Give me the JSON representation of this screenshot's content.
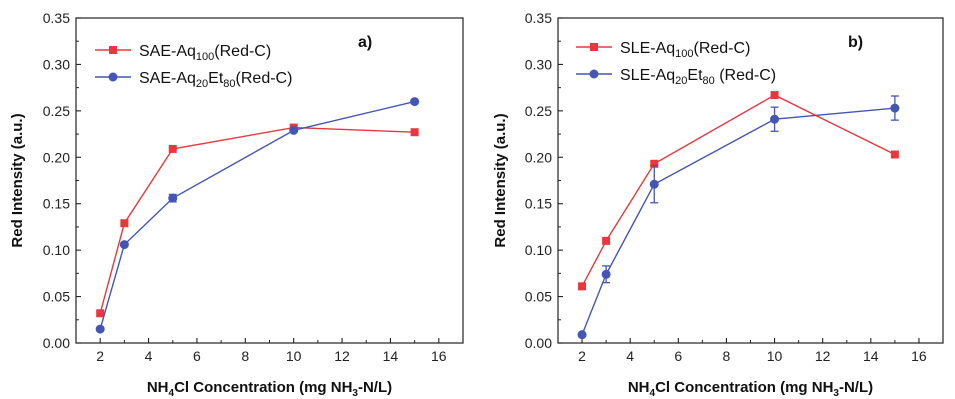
{
  "chart_data": [
    {
      "type": "line",
      "panel_label": "a)",
      "xlabel": "NH4Cl Concentration (mg NH3-N/L)",
      "ylabel": "Red Intensity (a.u.)",
      "xlim": [
        1,
        17
      ],
      "ylim": [
        0,
        0.35
      ],
      "xticks": [
        2,
        4,
        6,
        8,
        10,
        12,
        14,
        16
      ],
      "yticks": [
        0.0,
        0.05,
        0.1,
        0.15,
        0.2,
        0.25,
        0.3,
        0.35
      ],
      "grid": false,
      "legend_position": "top-left",
      "series": [
        {
          "name": "SAE-Aq100(Red-C)",
          "color": "#e8383d",
          "marker": "square",
          "x": [
            2,
            3,
            5,
            10,
            15
          ],
          "y": [
            0.032,
            0.129,
            0.209,
            0.232,
            0.227
          ],
          "err": [
            0,
            0,
            0,
            0,
            0
          ]
        },
        {
          "name": "SAE-Aq20Et80(Red-C)",
          "color": "#4455b5",
          "marker": "circle",
          "x": [
            2,
            3,
            5,
            10,
            15
          ],
          "y": [
            0.015,
            0.106,
            0.156,
            0.229,
            0.26
          ],
          "err": [
            0,
            0,
            0.004,
            0,
            0
          ]
        }
      ]
    },
    {
      "type": "line",
      "panel_label": "b)",
      "xlabel": "NH4Cl Concentration (mg NH3-N/L)",
      "ylabel": "Red Intensity (a.u.)",
      "xlim": [
        1,
        17
      ],
      "ylim": [
        0,
        0.35
      ],
      "xticks": [
        2,
        4,
        6,
        8,
        10,
        12,
        14,
        16
      ],
      "yticks": [
        0.0,
        0.05,
        0.1,
        0.15,
        0.2,
        0.25,
        0.3,
        0.35
      ],
      "grid": false,
      "legend_position": "top-left",
      "series": [
        {
          "name": "SLE-Aq100(Red-C)",
          "color": "#e8383d",
          "marker": "square",
          "x": [
            2,
            3,
            5,
            10,
            15
          ],
          "y": [
            0.061,
            0.11,
            0.193,
            0.267,
            0.203
          ],
          "err": [
            0,
            0,
            0,
            0,
            0
          ]
        },
        {
          "name": "SLE-Aq20Et80 (Red-C)",
          "color": "#4455b5",
          "marker": "circle",
          "x": [
            2,
            3,
            5,
            10,
            15
          ],
          "y": [
            0.009,
            0.074,
            0.171,
            0.241,
            0.253
          ],
          "err": [
            0,
            0.009,
            0.02,
            0.013,
            0.013
          ]
        }
      ]
    }
  ]
}
